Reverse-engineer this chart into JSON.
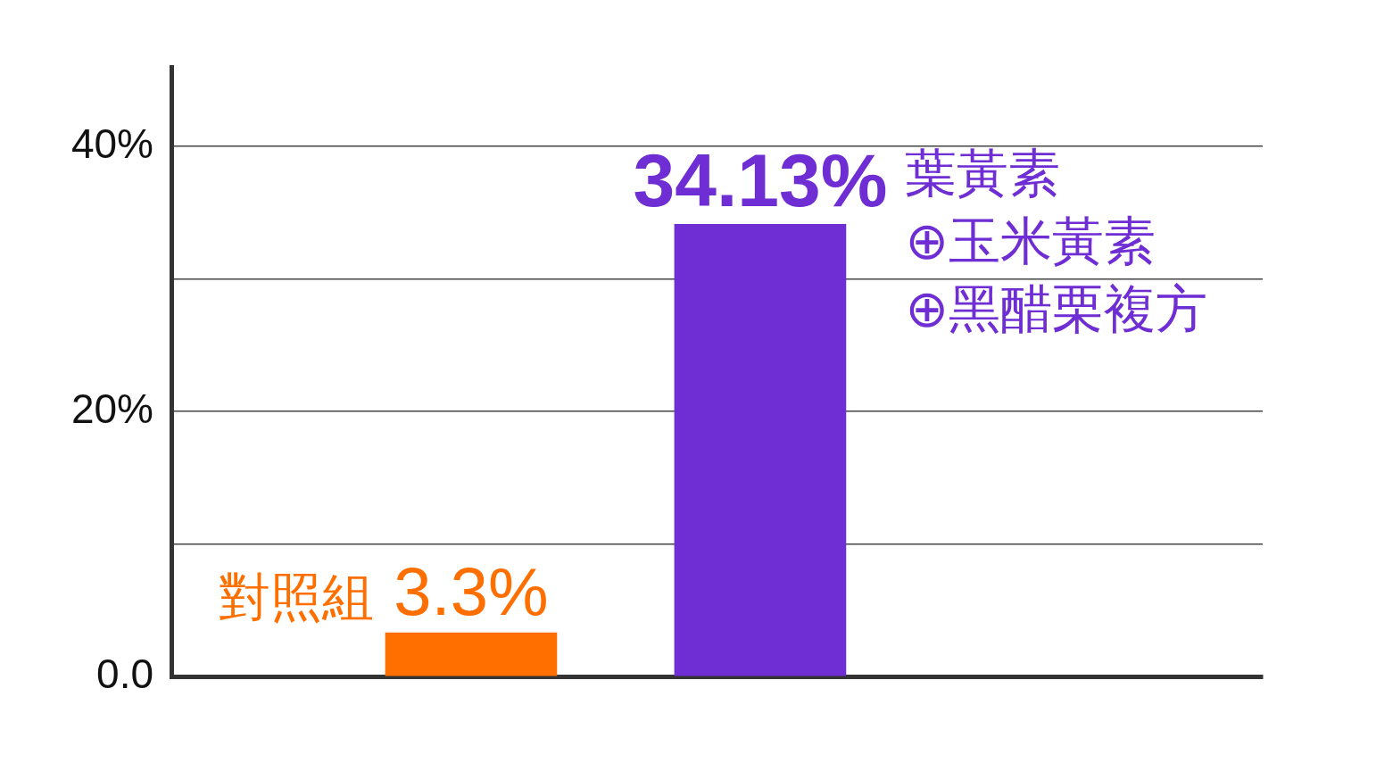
{
  "chart_data": {
    "type": "bar",
    "categories": [
      "對照組",
      "葉黃素\n⊕玉米黃素\n⊕黑醋栗複方"
    ],
    "values": [
      3.3,
      34.13
    ],
    "colors": [
      "#ff6f00",
      "#6f2dd4"
    ],
    "value_labels": [
      "3.3%",
      "34.13%"
    ],
    "ylim": [
      0,
      46
    ],
    "yticks": [
      {
        "value": 0,
        "label": "0.0"
      },
      {
        "value": 10,
        "label": null
      },
      {
        "value": 20,
        "label": "20%"
      },
      {
        "value": 30,
        "label": null
      },
      {
        "value": 40,
        "label": "40%"
      }
    ],
    "grid": "y",
    "tick_labels": "y"
  }
}
